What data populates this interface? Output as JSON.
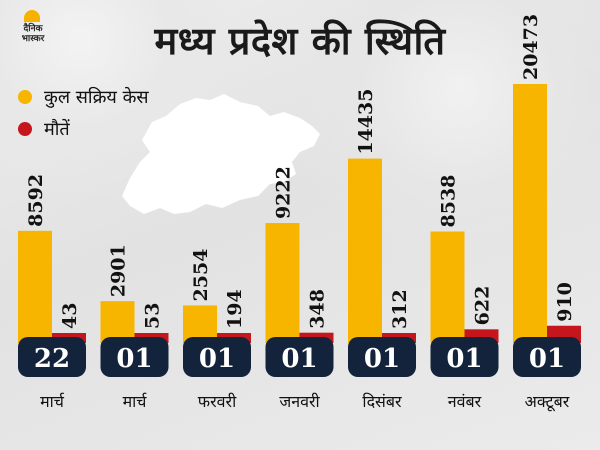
{
  "header": {
    "title": "मध्य प्रदेश की स्थिति",
    "logo_text": "दैनिक भास्कर"
  },
  "legend": [
    {
      "label": "कुल सक्रिय केस",
      "color": "#f7b500"
    },
    {
      "label": "मौतें",
      "color": "#c4161c"
    }
  ],
  "colors": {
    "active": "#f7b500",
    "deaths": "#c4161c",
    "date_box": "#12233b",
    "date_text": "#ffffff",
    "background": "#e9e9e9"
  },
  "chart_data": {
    "type": "bar",
    "title": "मध्य प्रदेश की स्थिति",
    "categories": [
      {
        "day": "22",
        "month": "मार्च"
      },
      {
        "day": "01",
        "month": "मार्च"
      },
      {
        "day": "01",
        "month": "फरवरी"
      },
      {
        "day": "01",
        "month": "जनवरी"
      },
      {
        "day": "01",
        "month": "दिसंबर"
      },
      {
        "day": "01",
        "month": "नवंबर"
      },
      {
        "day": "01",
        "month": "अक्टूबर"
      }
    ],
    "series": [
      {
        "name": "कुल सक्रिय केस",
        "values": [
          8592,
          2901,
          2554,
          9222,
          14435,
          8538,
          20473
        ]
      },
      {
        "name": "मौतें",
        "values": [
          43,
          53,
          194,
          348,
          312,
          622,
          910
        ]
      }
    ],
    "ylim": [
      0,
      20473
    ],
    "legend_position": "top-left",
    "grid": false
  }
}
